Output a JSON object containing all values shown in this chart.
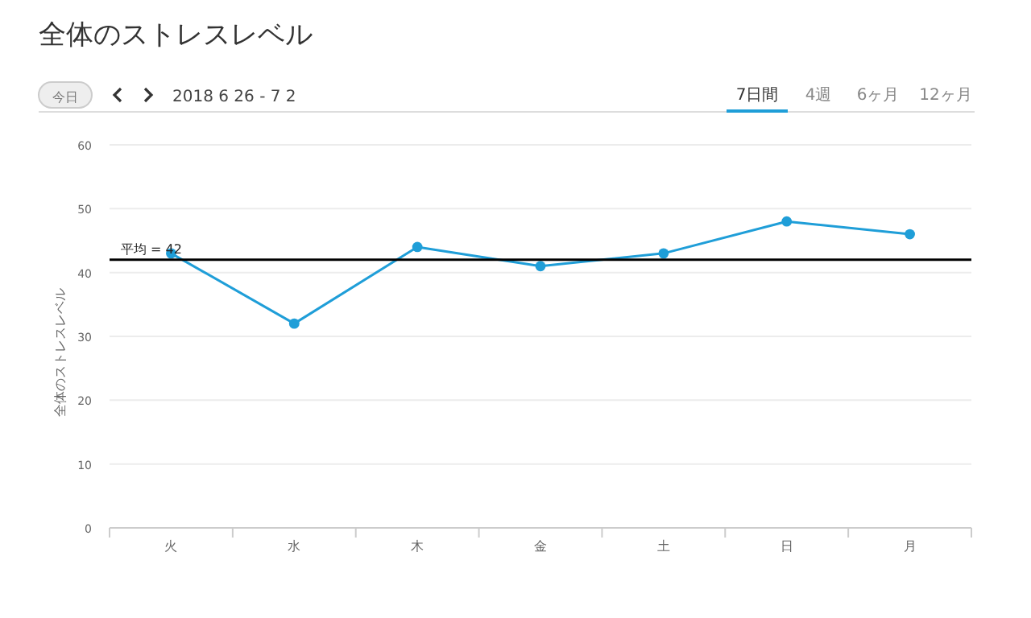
{
  "chart_data": {
    "type": "line",
    "title": "全体のストレスレベル",
    "subtitle": "2018 6 26 - 7 2",
    "ylabel": "全体のストレスレベル",
    "annotations": [
      "今日",
      "7日間",
      "4週",
      "6ヶ月",
      "12ヶ月"
    ],
    "categories": [
      "火",
      "水",
      "木",
      "金",
      "土",
      "日",
      "月"
    ],
    "series": [
      {
        "color": "#1f9ed8",
        "values": [
          43,
          32,
          44,
          41,
          43,
          48,
          46
        ]
      }
    ],
    "ylim": [
      0,
      60
    ],
    "yticks": [
      0,
      10,
      20,
      30,
      40,
      50,
      60
    ],
    "grid": "y",
    "marker": "circle",
    "line_style": "solid",
    "ref_lines": [
      {
        "axis": "y",
        "value": 42,
        "label": "平均 = 42",
        "color": "#000000"
      }
    ]
  }
}
